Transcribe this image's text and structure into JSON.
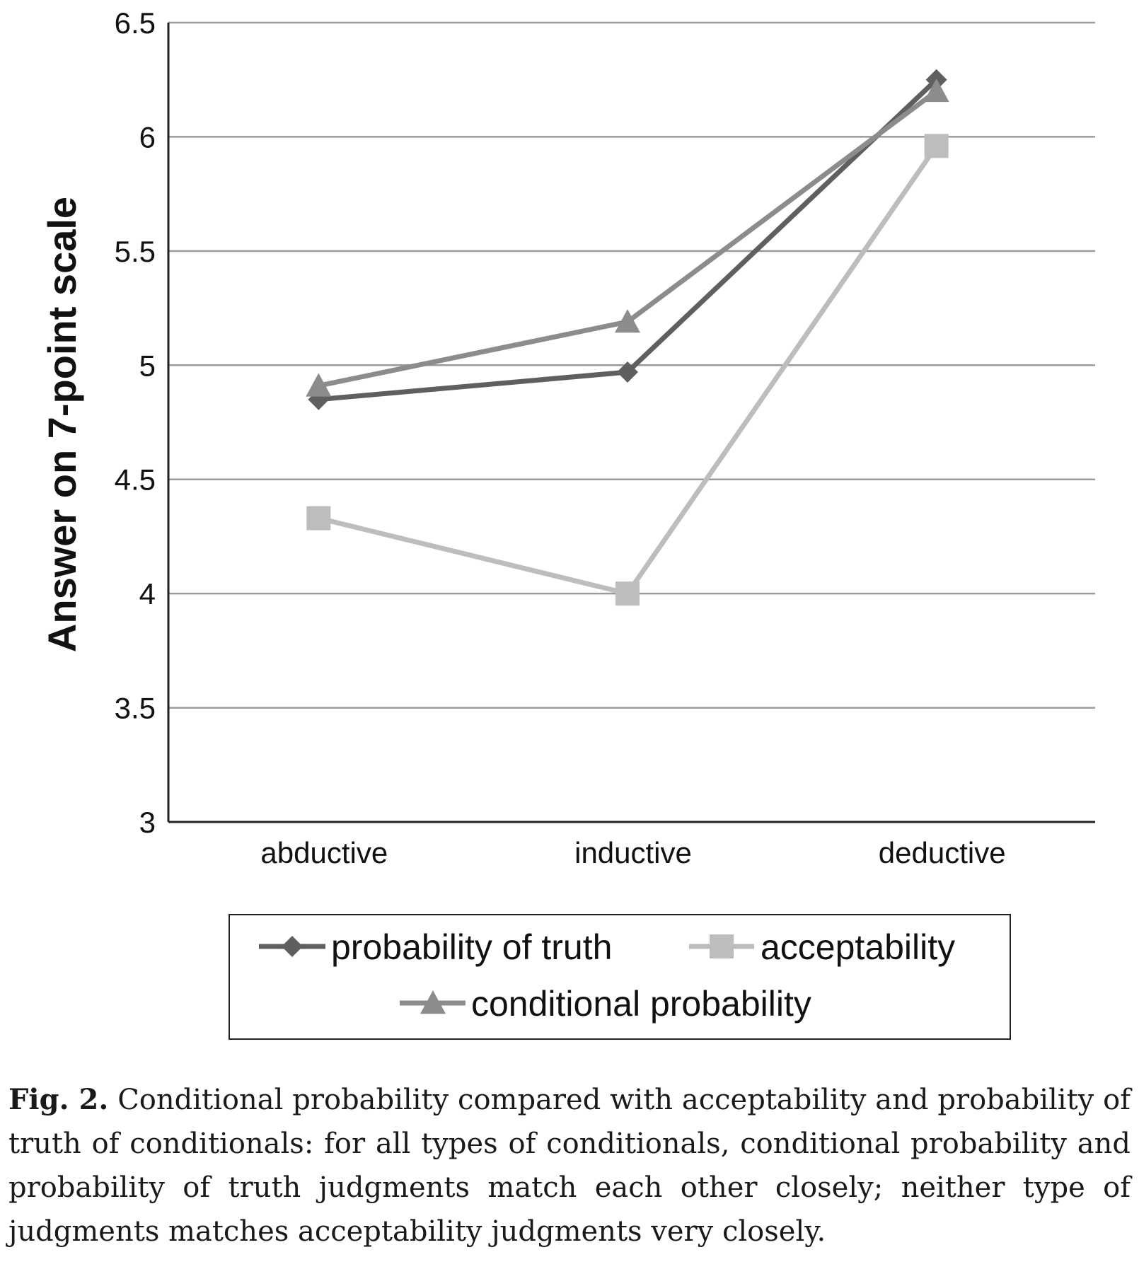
{
  "chart_data": {
    "type": "line",
    "title": "",
    "xlabel": "",
    "ylabel": "Answer on 7-point scale",
    "categories": [
      "abductive",
      "inductive",
      "deductive"
    ],
    "ylim": [
      3,
      6.5
    ],
    "yticks": [
      "3",
      "3.5",
      "4",
      "4.5",
      "5",
      "5.5",
      "6",
      "6.5"
    ],
    "grid": true,
    "legend": "bottom",
    "series": [
      {
        "name": "probability of truth",
        "values": [
          4.85,
          4.97,
          6.25
        ],
        "color": "#5f5f5f",
        "marker": "diamond"
      },
      {
        "name": "acceptability",
        "values": [
          4.33,
          4.0,
          5.96
        ],
        "color": "#bdbdbd",
        "marker": "square"
      },
      {
        "name": "conditional probability",
        "values": [
          4.91,
          5.19,
          6.2
        ],
        "color": "#8c8c8c",
        "marker": "triangle"
      }
    ]
  },
  "caption": {
    "label": "Fig. 2.",
    "text": "Conditional probability compared with acceptability and probability of truth of conditionals: for all types of conditionals, conditional probability and probability of truth judgments match each other closely; neither type of judgments matches acceptability judgments very closely."
  }
}
